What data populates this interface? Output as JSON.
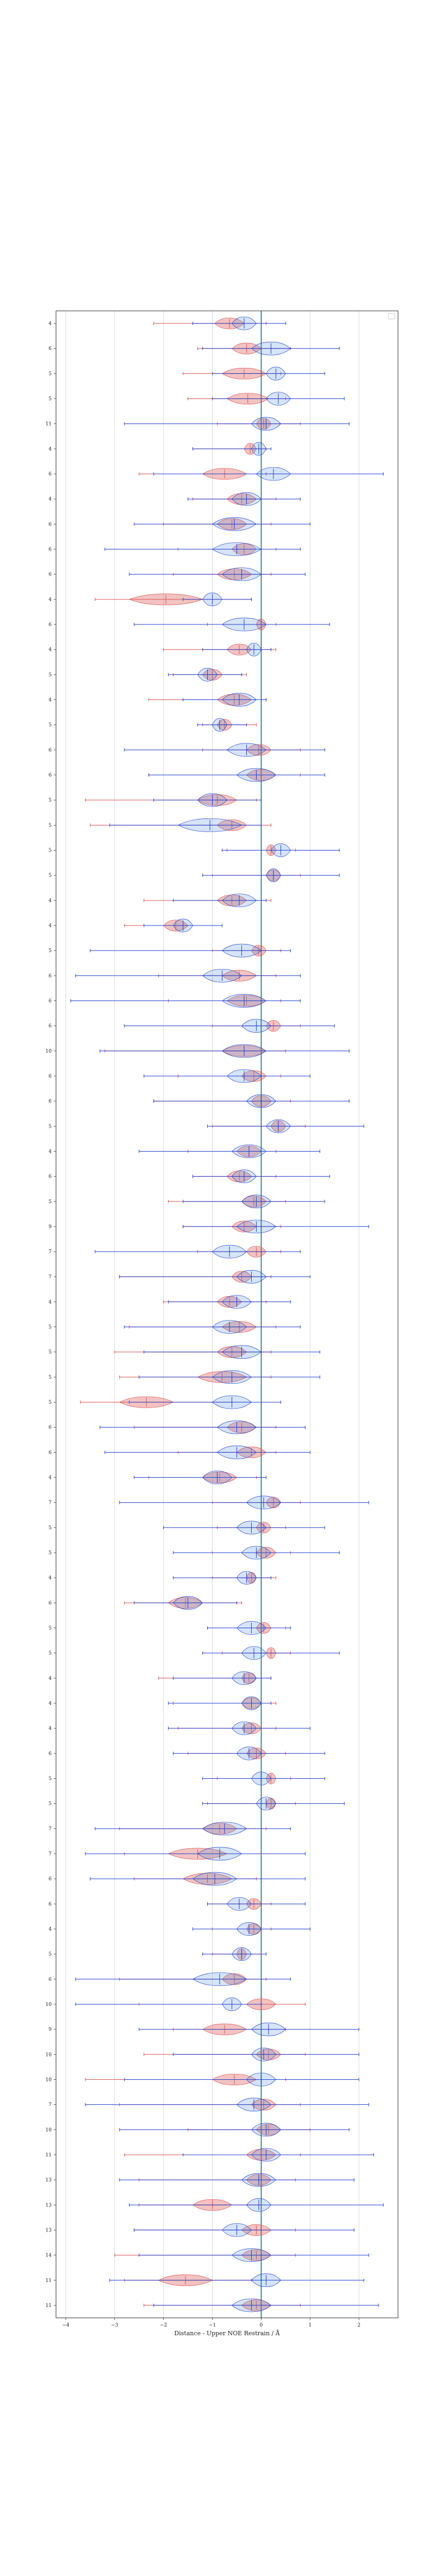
{
  "chart_data": {
    "type": "violin",
    "xlabel": "Distance - Upper NOE Restrain / Å",
    "xlim": [
      -4.2,
      2.8
    ],
    "xticks": [
      -4,
      -3,
      -2,
      -1,
      0,
      1,
      2
    ],
    "grid": true,
    "vertical_reference_line": 0,
    "legend": "top-right",
    "row_labels": [
      "4",
      "6",
      "5",
      "5",
      "11",
      "4",
      "6",
      "4",
      "6",
      "6",
      "6",
      "4",
      "6",
      "4",
      "5",
      "4",
      "5",
      "6",
      "6",
      "5",
      "5",
      "5",
      "5",
      "4",
      "4",
      "5",
      "6",
      "6",
      "6",
      "10",
      "6",
      "6",
      "5",
      "4",
      "6",
      "5",
      "9",
      "7",
      "7",
      "4",
      "5",
      "5",
      "5",
      "5",
      "6",
      "6",
      "4",
      "7",
      "5",
      "5",
      "4",
      "6",
      "5",
      "5",
      "4",
      "4",
      "4",
      "6",
      "5",
      "5",
      "7",
      "7",
      "6",
      "6",
      "4",
      "5",
      "6",
      "10",
      "9",
      "10",
      "10",
      "7",
      "10",
      "11",
      "13",
      "13",
      "13",
      "14",
      "11",
      "11"
    ],
    "series": [
      {
        "name": "red",
        "color": "#d9534f",
        "values": [
          [
            -2.2,
            -0.95,
            -0.35,
            0.1
          ],
          [
            -1.3,
            -0.6,
            0,
            0.6
          ],
          [
            -1.6,
            -0.8,
            0.1,
            0.4
          ],
          [
            -1.5,
            -0.7,
            0.15,
            0.5
          ],
          [
            -0.9,
            -0.1,
            0.2,
            0.8
          ],
          [
            -1.4,
            -0.35,
            -0.1,
            0.1
          ],
          [
            -2.5,
            -1.2,
            -0.3,
            0.1
          ],
          [
            -1.4,
            -0.7,
            -0.1,
            0.3
          ],
          [
            -2.0,
            -0.9,
            -0.3,
            0.2
          ],
          [
            -1.7,
            -0.6,
            -0.1,
            0.3
          ],
          [
            -1.8,
            -0.9,
            -0.2,
            0.2
          ],
          [
            -3.4,
            -2.7,
            -1.2,
            -0.2
          ],
          [
            -1.1,
            -0.1,
            0.1,
            0.3
          ],
          [
            -2.0,
            -0.7,
            -0.2,
            0.3
          ],
          [
            -1.8,
            -1.2,
            -0.8,
            -0.3
          ],
          [
            -2.3,
            -0.9,
            -0.2,
            0.1
          ],
          [
            -1.2,
            -0.9,
            -0.6,
            -0.1
          ],
          [
            -1.2,
            -0.3,
            0.2,
            0.8
          ],
          [
            -2.3,
            -0.3,
            0.3,
            0.8
          ],
          [
            -3.6,
            -1.3,
            -0.5,
            -0.1
          ],
          [
            -3.5,
            -0.9,
            -0.3,
            0.2
          ],
          [
            -0.7,
            0.1,
            0.3,
            0.7
          ],
          [
            -1.0,
            0.1,
            0.4,
            0.8
          ],
          [
            -2.4,
            -0.9,
            -0.3,
            0.2
          ],
          [
            -2.8,
            -2.0,
            -1.5,
            -0.8
          ],
          [
            -1.0,
            -0.2,
            0.1,
            0.4
          ],
          [
            -2.1,
            -0.8,
            -0.1,
            0.3
          ],
          [
            -1.9,
            -0.7,
            0.1,
            0.4
          ],
          [
            -1.0,
            0.1,
            0.4,
            0.8
          ],
          [
            -3.2,
            -0.8,
            0.1,
            0.5
          ],
          [
            -1.7,
            -0.4,
            0.1,
            0.4
          ],
          [
            -2.2,
            -0.2,
            0.2,
            0.6
          ],
          [
            -1.0,
            0.2,
            0.5,
            0.9
          ],
          [
            -1.5,
            -0.5,
            0,
            0.3
          ],
          [
            -1.4,
            -0.7,
            -0.2,
            0.3
          ],
          [
            -1.9,
            -0.4,
            0.1,
            0.5
          ],
          [
            -1.6,
            -0.6,
            -0.1,
            0.4
          ],
          [
            -1.3,
            -0.3,
            0.1,
            0.4
          ],
          [
            -2.9,
            -0.6,
            -0.2,
            0.2
          ],
          [
            -2.0,
            -0.9,
            -0.4,
            0.1
          ],
          [
            -2.7,
            -0.8,
            -0.1,
            0.3
          ],
          [
            -3.0,
            -0.9,
            -0.3,
            0.2
          ],
          [
            -2.9,
            -1.3,
            -0.3,
            0.2
          ],
          [
            -3.7,
            -2.9,
            -1.8,
            -0.6
          ],
          [
            -2.6,
            -0.7,
            -0.1,
            0.3
          ],
          [
            -1.7,
            -0.5,
            0.1,
            0.3
          ],
          [
            -2.3,
            -1.2,
            -0.5,
            -0.1
          ],
          [
            -1.0,
            0.1,
            0.4,
            0.8
          ],
          [
            -0.9,
            -0.1,
            0.2,
            0.5
          ],
          [
            -1.0,
            -0.1,
            0.3,
            0.6
          ],
          [
            -1.0,
            -0.3,
            -0.1,
            0.3
          ],
          [
            -2.8,
            -1.9,
            -1.2,
            -0.4
          ],
          [
            -1.1,
            -0.1,
            0.2,
            0.5
          ],
          [
            -0.8,
            0.1,
            0.3,
            0.6
          ],
          [
            -2.1,
            -0.4,
            -0.1,
            0.2
          ],
          [
            -1.8,
            -0.4,
            0,
            0.3
          ],
          [
            -1.7,
            -0.4,
            0,
            0.3
          ],
          [
            -1.5,
            -0.3,
            0.1,
            0.5
          ],
          [
            -0.9,
            0.1,
            0.3,
            0.6
          ],
          [
            -1.1,
            0.1,
            0.3,
            0.7
          ],
          [
            -2.9,
            -1.2,
            -0.5,
            0.1
          ],
          [
            -2.8,
            -1.9,
            -0.7,
            0
          ],
          [
            -2.6,
            -1.6,
            -0.6,
            -0.1
          ],
          [
            -1.1,
            -0.3,
            0,
            0.2
          ],
          [
            -1.0,
            -0.3,
            0,
            0.2
          ],
          [
            -1.0,
            -0.5,
            -0.3,
            0
          ],
          [
            -2.9,
            -0.8,
            -0.3,
            0.1
          ],
          [
            -2.5,
            -0.3,
            0.3,
            0.9
          ],
          [
            -1.8,
            -1.2,
            -0.3,
            0.5
          ],
          [
            -2.4,
            -0.1,
            0.4,
            0.9
          ],
          [
            -3.6,
            -1.0,
            -0.1,
            0.5
          ],
          [
            -2.9,
            -0.2,
            0.3,
            0.8
          ],
          [
            -1.5,
            -0.1,
            0.4,
            1.0
          ],
          [
            -2.8,
            -0.3,
            0.3,
            0.8
          ],
          [
            -2.5,
            -0.3,
            0.2,
            0.7
          ],
          [
            -2.5,
            -1.4,
            -0.6,
            0
          ],
          [
            -2.6,
            -0.4,
            0.2,
            0.7
          ],
          [
            -3.0,
            -0.4,
            0.2,
            0.7
          ],
          [
            -2.8,
            -2.1,
            -1.0,
            -0.2
          ],
          [
            -2.4,
            -0.4,
            0.2,
            0.8
          ]
        ]
      },
      {
        "name": "blue",
        "color": "#1f3fd0",
        "values": [
          [
            -1.4,
            -0.6,
            -0.1,
            0.5
          ],
          [
            -1.2,
            -0.2,
            0.6,
            1.6
          ],
          [
            -1.0,
            0.1,
            0.5,
            1.3
          ],
          [
            -1.0,
            0.1,
            0.6,
            1.7
          ],
          [
            -2.8,
            -0.2,
            0.4,
            1.8
          ],
          [
            -1.4,
            -0.2,
            0.1,
            0.2
          ],
          [
            -2.2,
            -0.1,
            0.6,
            2.5
          ],
          [
            -1.5,
            -0.6,
            0,
            0.8
          ],
          [
            -2.6,
            -1.0,
            -0.1,
            1.0
          ],
          [
            -3.2,
            -1.0,
            0,
            0.8
          ],
          [
            -2.7,
            -0.8,
            0,
            0.9
          ],
          [
            -1.6,
            -1.2,
            -0.8,
            -0.2
          ],
          [
            -2.6,
            -0.8,
            0.1,
            1.4
          ],
          [
            -1.2,
            -0.3,
            0,
            0.2
          ],
          [
            -1.9,
            -1.3,
            -0.9,
            -0.4
          ],
          [
            -1.6,
            -0.8,
            -0.1,
            0.1
          ],
          [
            -1.3,
            -1.0,
            -0.7,
            -0.3
          ],
          [
            -2.8,
            -0.7,
            0.1,
            1.3
          ],
          [
            -2.3,
            -0.5,
            0.3,
            1.3
          ],
          [
            -2.2,
            -1.3,
            -0.7,
            0
          ],
          [
            -3.1,
            -1.7,
            -0.4,
            0
          ],
          [
            -0.8,
            0.2,
            0.6,
            1.6
          ],
          [
            -1.2,
            0.1,
            0.4,
            1.6
          ],
          [
            -1.8,
            -0.8,
            -0.1,
            0.1
          ],
          [
            -2.4,
            -1.8,
            -1.4,
            -0.8
          ],
          [
            -3.5,
            -0.8,
            0,
            0.6
          ],
          [
            -3.8,
            -1.2,
            -0.4,
            0.8
          ],
          [
            -3.9,
            -0.8,
            0.1,
            0.8
          ],
          [
            -2.8,
            -0.4,
            0.2,
            1.5
          ],
          [
            -3.3,
            -0.8,
            0.1,
            1.8
          ],
          [
            -2.4,
            -0.7,
            0,
            1.0
          ],
          [
            -2.2,
            -0.3,
            0.3,
            1.8
          ],
          [
            -1.1,
            0.1,
            0.6,
            2.1
          ],
          [
            -2.5,
            -0.6,
            0.1,
            1.2
          ],
          [
            -1.4,
            -0.6,
            -0.1,
            1.4
          ],
          [
            -1.6,
            -0.4,
            0.2,
            1.3
          ],
          [
            -1.6,
            -0.5,
            0.3,
            2.2
          ],
          [
            -3.4,
            -1.0,
            -0.3,
            0.8
          ],
          [
            -2.9,
            -0.5,
            0.1,
            1.0
          ],
          [
            -1.9,
            -0.8,
            -0.2,
            0.6
          ],
          [
            -2.8,
            -1.0,
            -0.3,
            0.8
          ],
          [
            -2.4,
            -0.8,
            0,
            1.2
          ],
          [
            -2.5,
            -1.0,
            -0.2,
            1.2
          ],
          [
            -2.7,
            -1.0,
            -0.2,
            0.4
          ],
          [
            -3.3,
            -0.9,
            -0.1,
            0.9
          ],
          [
            -3.2,
            -0.9,
            -0.1,
            1.0
          ],
          [
            -2.6,
            -1.2,
            -0.6,
            0.1
          ],
          [
            -2.9,
            -0.3,
            0.4,
            2.2
          ],
          [
            -2.0,
            -0.5,
            0.1,
            1.3
          ],
          [
            -1.8,
            -0.4,
            0.2,
            1.6
          ],
          [
            -1.8,
            -0.5,
            -0.1,
            0.2
          ],
          [
            -2.6,
            -1.8,
            -1.2,
            -0.5
          ],
          [
            -1.1,
            -0.5,
            0.1,
            0.6
          ],
          [
            -1.2,
            -0.4,
            0.1,
            1.6
          ],
          [
            -1.8,
            -0.6,
            -0.1,
            0.2
          ],
          [
            -1.9,
            -0.4,
            0,
            0.2
          ],
          [
            -1.9,
            -0.6,
            -0.1,
            1.0
          ],
          [
            -1.8,
            -0.5,
            0,
            1.3
          ],
          [
            -1.2,
            -0.2,
            0.2,
            1.3
          ],
          [
            -1.2,
            -0.1,
            0.3,
            1.7
          ],
          [
            -3.4,
            -1.2,
            -0.3,
            0.6
          ],
          [
            -3.6,
            -1.3,
            -0.4,
            0.9
          ],
          [
            -3.5,
            -1.4,
            -0.5,
            0.9
          ],
          [
            -1.1,
            -0.7,
            -0.2,
            0.9
          ],
          [
            -1.4,
            -0.5,
            0,
            1.0
          ],
          [
            -1.2,
            -0.6,
            -0.2,
            0.1
          ],
          [
            -3.8,
            -1.4,
            -0.3,
            0.6
          ],
          [
            -3.8,
            -0.8,
            -0.4,
            0
          ],
          [
            -2.5,
            -0.2,
            0.5,
            2.0
          ],
          [
            -1.8,
            -0.2,
            0.3,
            2.0
          ],
          [
            -2.8,
            -0.3,
            0.3,
            2.0
          ],
          [
            -3.6,
            -0.5,
            0.2,
            2.2
          ],
          [
            -2.9,
            -0.2,
            0.4,
            1.8
          ],
          [
            -1.6,
            -0.2,
            0.4,
            2.3
          ],
          [
            -2.9,
            -0.4,
            0.3,
            1.9
          ],
          [
            -2.7,
            -0.3,
            0.2,
            2.5
          ],
          [
            -2.6,
            -0.8,
            -0.2,
            1.9
          ],
          [
            -2.5,
            -0.6,
            0.2,
            2.2
          ],
          [
            -3.1,
            -0.2,
            0.4,
            2.1
          ],
          [
            -2.2,
            -0.6,
            0.2,
            2.4
          ]
        ]
      }
    ]
  }
}
